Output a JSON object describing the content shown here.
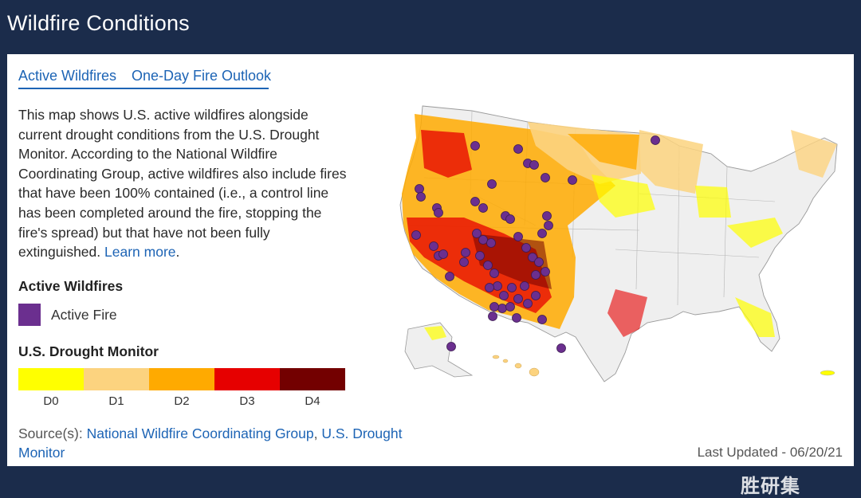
{
  "header": {
    "title": "Wildfire Conditions"
  },
  "tabs": [
    {
      "label": "Active Wildfires",
      "active": true
    },
    {
      "label": "One-Day Fire Outlook",
      "active": false
    }
  ],
  "description": {
    "text": "This map shows U.S. active wildfires alongside current drought conditions from the U.S. Drought Monitor. According to the National Wildfire Coordinating Group, active wildfires also include fires that have been 100% contained (i.e., a control line has been completed around the fire, stopping the fire's spread) but that have not been fully extinguished.",
    "link": "Learn more",
    "period": "."
  },
  "legend": {
    "fires_heading": "Active Wildfires",
    "fire_label": "Active Fire",
    "fire_color": "#6b2f8f",
    "drought_heading": "U.S. Drought Monitor",
    "drought_levels": [
      {
        "label": "D0",
        "color": "#ffff00"
      },
      {
        "label": "D1",
        "color": "#fcd37f"
      },
      {
        "label": "D2",
        "color": "#ffaa00"
      },
      {
        "label": "D3",
        "color": "#e60000"
      },
      {
        "label": "D4",
        "color": "#730000"
      }
    ]
  },
  "source": {
    "prefix": "Source(s): ",
    "link1": "National Wildfire Coordinating Group",
    "separator": ", ",
    "link2": "U.S. Drought Monitor"
  },
  "updated": "Last Updated  -  06/20/21",
  "watermark": "胜研集"
}
